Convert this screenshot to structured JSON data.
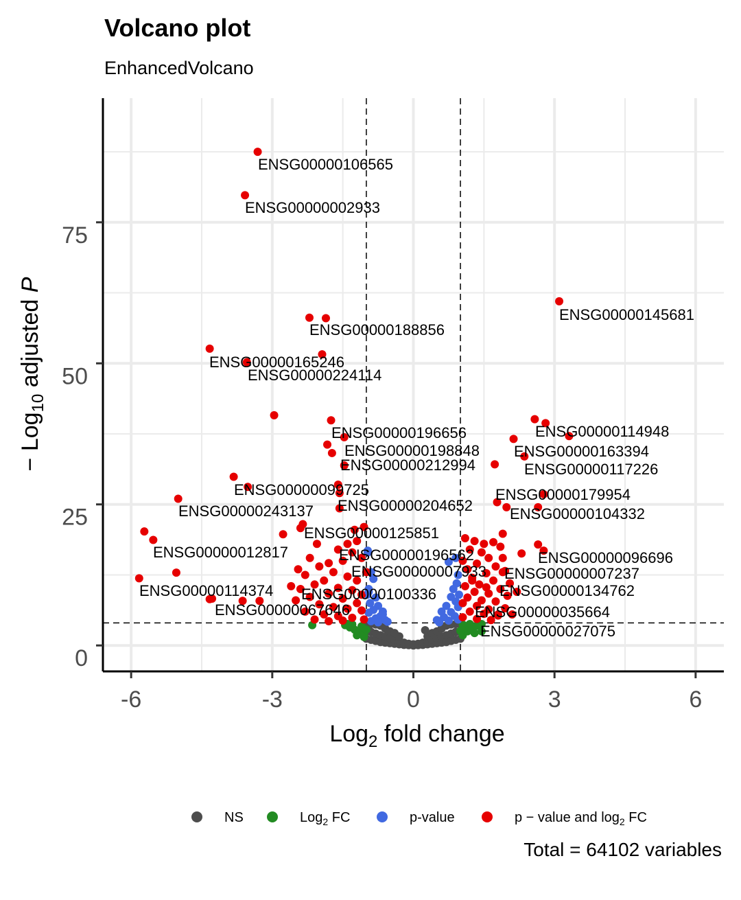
{
  "chart_data": {
    "type": "scatter",
    "title": "Volcano plot",
    "subtitle": "EnhancedVolcano",
    "xlabel": "Log2 fold change",
    "ylabel": "-Log10 adjusted P",
    "xlim": [
      -6.6,
      6.6
    ],
    "ylim": [
      -4.6,
      97
    ],
    "x_ticks": [
      -6,
      -3,
      0,
      3,
      6
    ],
    "x_tick_labels": [
      "-6",
      "-3",
      "0",
      "3",
      "6"
    ],
    "y_ticks": [
      0,
      25,
      50,
      75
    ],
    "y_tick_labels": [
      "0",
      "25",
      "50",
      "75"
    ],
    "x_minor": [
      -4.5,
      -1.5,
      1.5,
      4.5
    ],
    "y_minor": [
      12.5,
      37.5,
      62.5,
      87.5
    ],
    "grid": true,
    "fc_cutoff": 1,
    "p_cutoff": 4,
    "colors": {
      "NS": "#4d4d4d",
      "FC": "#228b22",
      "P": "#4169e1",
      "P_FC": "#e60000"
    },
    "legend_position": "bottom",
    "legend": [
      {
        "key": "NS",
        "label": "NS"
      },
      {
        "key": "FC",
        "label": "Log",
        "sub": "2",
        "tail": " FC"
      },
      {
        "key": "P",
        "label": "p-value"
      },
      {
        "key": "P_FC",
        "label": "p − value and log",
        "sub": "2",
        "tail": " FC"
      }
    ],
    "caption": "Total = 64102 variables",
    "labeled_points": [
      {
        "gene": "ENSG00000106565",
        "x": -3.31,
        "y": 87.5
      },
      {
        "gene": "ENSG00000002933",
        "x": -3.58,
        "y": 79.8
      },
      {
        "gene": "ENSG00000145681",
        "x": 3.1,
        "y": 61.0
      },
      {
        "gene": "ENSG00000188856",
        "x": -1.86,
        "y": 58.0
      },
      {
        "gene": "ENSG00000165246",
        "x": -3.54,
        "y": 50.2
      },
      {
        "gene": "ENSG00000224114",
        "x": -1.94,
        "y": 51.6
      },
      {
        "gene": "ENSG00000196656",
        "x": -1.75,
        "y": 39.9
      },
      {
        "gene": "ENSG00000114948",
        "x": 2.81,
        "y": 39.4
      },
      {
        "gene": "ENSG00000198848",
        "x": -1.47,
        "y": 36.9
      },
      {
        "gene": "ENSG00000163394",
        "x": 2.13,
        "y": 36.6
      },
      {
        "gene": "ENSG00000212994",
        "x": -1.47,
        "y": 31.9
      },
      {
        "gene": "ENSG00000117226",
        "x": 2.36,
        "y": 33.5
      },
      {
        "gene": "ENSG00000099725",
        "x": -3.52,
        "y": 28.1
      },
      {
        "gene": "ENSG00000179954",
        "x": 1.73,
        "y": 32.1
      },
      {
        "gene": "ENSG00000204652",
        "x": -1.57,
        "y": 24.3
      },
      {
        "gene": "ENSG00000243137",
        "x": -5.0,
        "y": 26.0
      },
      {
        "gene": "ENSG00000104332",
        "x": 2.65,
        "y": 24.5
      },
      {
        "gene": "ENSG00000125851",
        "x": -1.05,
        "y": 21.0
      },
      {
        "gene": "ENSG00000012817",
        "x": -5.53,
        "y": 18.7
      },
      {
        "gene": "ENSG00000196562",
        "x": -0.97,
        "y": 16.5
      },
      {
        "gene": "ENSG00000096696",
        "x": 2.77,
        "y": 16.8
      },
      {
        "gene": "ENSG00000007933",
        "x": -1.0,
        "y": 13.0
      },
      {
        "gene": "ENSG00000007237",
        "x": 1.9,
        "y": 13.0
      },
      {
        "gene": "ENSG00000114374",
        "x": -4.28,
        "y": 8.3
      },
      {
        "gene": "ENSG00000100336",
        "x": -0.95,
        "y": 9.5
      },
      {
        "gene": "ENSG00000134762",
        "x": 2.2,
        "y": 9.5
      },
      {
        "gene": "ENSG00000067646",
        "x": -3.27,
        "y": 7.9
      },
      {
        "gene": "ENSG00000035664",
        "x": 1.8,
        "y": 5.5
      },
      {
        "gene": "ENSG00000027075",
        "x": 1.45,
        "y": 2.5
      }
    ],
    "series": {
      "NS": [
        [
          -1,
          1.2
        ],
        [
          -1,
          2.5
        ],
        [
          -1,
          3.8
        ],
        [
          -0.9,
          1.0
        ],
        [
          -0.9,
          2.4
        ],
        [
          -0.9,
          3.8
        ],
        [
          -0.8,
          0.8
        ],
        [
          -0.8,
          2.1
        ],
        [
          -0.8,
          3.7
        ],
        [
          -0.7,
          0.6
        ],
        [
          -0.7,
          1.8
        ],
        [
          -0.7,
          3.5
        ],
        [
          -0.6,
          0.5
        ],
        [
          -0.6,
          1.6
        ],
        [
          -0.6,
          3.0
        ],
        [
          -0.5,
          0.4
        ],
        [
          -0.5,
          1.3
        ],
        [
          -0.5,
          2.5
        ],
        [
          -0.4,
          0.3
        ],
        [
          -0.4,
          1.0
        ],
        [
          -0.4,
          2.2
        ],
        [
          -0.3,
          0.2
        ],
        [
          -0.3,
          0.8
        ],
        [
          -0.3,
          1.6
        ],
        [
          -0.2,
          0.1
        ],
        [
          -0.2,
          0.5
        ],
        [
          -0.1,
          0.05
        ],
        [
          -0.1,
          0.3
        ],
        [
          0,
          0
        ],
        [
          0,
          0.2
        ],
        [
          0.1,
          0.05
        ],
        [
          0.1,
          0.3
        ],
        [
          0.2,
          0.1
        ],
        [
          0.2,
          0.5
        ],
        [
          0.3,
          0.2
        ],
        [
          0.3,
          0.8
        ],
        [
          0.3,
          1.6
        ],
        [
          0.25,
          2.7
        ],
        [
          0.4,
          0.3
        ],
        [
          0.4,
          1.0
        ],
        [
          0.4,
          2.2
        ],
        [
          0.5,
          0.4
        ],
        [
          0.5,
          1.3
        ],
        [
          0.5,
          2.5
        ],
        [
          0.6,
          0.5
        ],
        [
          0.6,
          1.6
        ],
        [
          0.6,
          3.0
        ],
        [
          0.7,
          0.6
        ],
        [
          0.7,
          1.8
        ],
        [
          0.7,
          3.5
        ],
        [
          0.8,
          0.8
        ],
        [
          0.8,
          2.1
        ],
        [
          0.8,
          3.7
        ],
        [
          0.9,
          1.0
        ],
        [
          0.9,
          2.4
        ],
        [
          0.9,
          3.8
        ],
        [
          1,
          1.2
        ],
        [
          1,
          2.5
        ],
        [
          1,
          3.8
        ]
      ],
      "FC": [
        [
          -2.15,
          3.6
        ],
        [
          -1.45,
          3.6
        ],
        [
          -1.35,
          3.2
        ],
        [
          -1.25,
          2.8
        ],
        [
          -1.15,
          2.4
        ],
        [
          -1.05,
          2.0
        ],
        [
          -1.3,
          3.7
        ],
        [
          -1.1,
          3.4
        ],
        [
          -1.2,
          1.8
        ],
        [
          -1.05,
          1.5
        ],
        [
          -1.4,
          3.8
        ],
        [
          -1.0,
          2.8
        ],
        [
          1.05,
          1.8
        ],
        [
          1.15,
          2.5
        ],
        [
          1.25,
          3.0
        ],
        [
          1.35,
          3.5
        ],
        [
          1.1,
          3.2
        ],
        [
          1.2,
          3.8
        ],
        [
          1.45,
          3.8
        ],
        [
          1.0,
          2.6
        ],
        [
          1.3,
          2.2
        ],
        [
          1.05,
          3.7
        ]
      ],
      "P": [
        [
          -0.97,
          16.8
        ],
        [
          -0.9,
          13.0
        ],
        [
          -0.85,
          11.8
        ],
        [
          -0.95,
          10
        ],
        [
          -0.8,
          8.5
        ],
        [
          -0.92,
          7.5
        ],
        [
          -0.75,
          7
        ],
        [
          -0.85,
          6.3
        ],
        [
          -0.65,
          6
        ],
        [
          -0.95,
          5.8
        ],
        [
          -0.7,
          5.2
        ],
        [
          -0.8,
          4.8
        ],
        [
          -0.6,
          4.5
        ],
        [
          -0.9,
          4.3
        ],
        [
          -0.55,
          4.2
        ],
        [
          -0.75,
          4.1
        ],
        [
          -0.65,
          5.5
        ],
        [
          -0.98,
          9
        ],
        [
          0.75,
          14.8
        ],
        [
          0.9,
          15.5
        ],
        [
          0.95,
          12.5
        ],
        [
          0.92,
          11
        ],
        [
          0.85,
          10
        ],
        [
          0.97,
          9
        ],
        [
          0.8,
          8.6
        ],
        [
          0.9,
          7.8
        ],
        [
          0.7,
          7
        ],
        [
          0.95,
          6.8
        ],
        [
          0.6,
          6
        ],
        [
          0.8,
          5.9
        ],
        [
          0.88,
          5.2
        ],
        [
          0.65,
          5
        ],
        [
          0.5,
          4.5
        ],
        [
          0.75,
          4.4
        ],
        [
          0.95,
          4.6
        ],
        [
          0.55,
          4.1
        ]
      ],
      "P_FC": [
        [
          -2.21,
          58.1
        ],
        [
          -4.33,
          52.6
        ],
        [
          -2.96,
          40.8
        ],
        [
          -1.83,
          35.6
        ],
        [
          -1.73,
          34.1
        ],
        [
          -3.82,
          29.9
        ],
        [
          -1.6,
          28.5
        ],
        [
          -1.57,
          27.0
        ],
        [
          -2.77,
          19.7
        ],
        [
          -2.35,
          21.5
        ],
        [
          -2.4,
          20.8
        ],
        [
          -5.72,
          20.2
        ],
        [
          -5.04,
          12.9
        ],
        [
          -5.83,
          11.9
        ],
        [
          -4.33,
          8.2
        ],
        [
          -3.63,
          7.9
        ],
        [
          2.58,
          40.1
        ],
        [
          3.31,
          37.1
        ],
        [
          2.77,
          26.8
        ],
        [
          1.78,
          25.4
        ],
        [
          1.98,
          24.5
        ],
        [
          2.65,
          17.9
        ],
        [
          2.3,
          16.3
        ],
        [
          1.9,
          19.8
        ],
        [
          -1.2,
          18.5
        ],
        [
          -1.4,
          18
        ],
        [
          -1.6,
          17
        ],
        [
          -1.3,
          16.5
        ],
        [
          -1.1,
          15.5
        ],
        [
          -1.5,
          15
        ],
        [
          -1.8,
          14.6
        ],
        [
          -2.0,
          14
        ],
        [
          -2.3,
          12.5
        ],
        [
          -1.7,
          13
        ],
        [
          -1.4,
          12.2
        ],
        [
          -1.2,
          11.5
        ],
        [
          -1.9,
          11.5
        ],
        [
          -2.1,
          10.8
        ],
        [
          -2.4,
          10
        ],
        [
          -1.6,
          10.2
        ],
        [
          -1.3,
          9.8
        ],
        [
          -1.1,
          9
        ],
        [
          -1.8,
          9.2
        ],
        [
          -2.2,
          8.6
        ],
        [
          -2.5,
          8
        ],
        [
          -1.5,
          8.3
        ],
        [
          -1.2,
          7.5
        ],
        [
          -2.0,
          7.3
        ],
        [
          -1.7,
          6.8
        ],
        [
          -1.4,
          6.5
        ],
        [
          -1.1,
          6.2
        ],
        [
          -2.3,
          6.0
        ],
        [
          -1.9,
          5.5
        ],
        [
          -1.6,
          5.2
        ],
        [
          -1.3,
          4.9
        ],
        [
          -1.05,
          4.6
        ],
        [
          -1.5,
          4.4
        ],
        [
          -2.1,
          4.6
        ],
        [
          -1.8,
          4.3
        ],
        [
          -2.6,
          10.5
        ],
        [
          -2.45,
          13.5
        ],
        [
          -2.05,
          18
        ],
        [
          -1.25,
          20.5
        ],
        [
          -2.2,
          15.5
        ],
        [
          1.1,
          19
        ],
        [
          1.3,
          18.5
        ],
        [
          1.5,
          18
        ],
        [
          1.7,
          18.3
        ],
        [
          1.85,
          17.5
        ],
        [
          1.2,
          17
        ],
        [
          1.45,
          16.5
        ],
        [
          1.6,
          15.5
        ],
        [
          1.05,
          15
        ],
        [
          1.35,
          14.5
        ],
        [
          1.75,
          14
        ],
        [
          1.95,
          13.2
        ],
        [
          1.15,
          13.5
        ],
        [
          1.55,
          12.8
        ],
        [
          1.25,
          12
        ],
        [
          1.7,
          11.5
        ],
        [
          2.05,
          11
        ],
        [
          1.4,
          10.8
        ],
        [
          1.1,
          10.5
        ],
        [
          1.85,
          10
        ],
        [
          1.3,
          9.5
        ],
        [
          1.6,
          9.2
        ],
        [
          2.0,
          8.8
        ],
        [
          1.15,
          8.5
        ],
        [
          1.45,
          8
        ],
        [
          1.75,
          7.8
        ],
        [
          1.05,
          7.5
        ],
        [
          1.35,
          7
        ],
        [
          1.95,
          6.6
        ],
        [
          1.6,
          6.4
        ],
        [
          1.2,
          6
        ],
        [
          1.5,
          5.6
        ],
        [
          1.8,
          5.3
        ],
        [
          1.05,
          5
        ],
        [
          1.35,
          4.7
        ],
        [
          1.65,
          4.5
        ],
        [
          2.1,
          5.5
        ],
        [
          1.25,
          11.5
        ],
        [
          1.55,
          10.3
        ],
        [
          1.9,
          15.5
        ]
      ]
    }
  }
}
